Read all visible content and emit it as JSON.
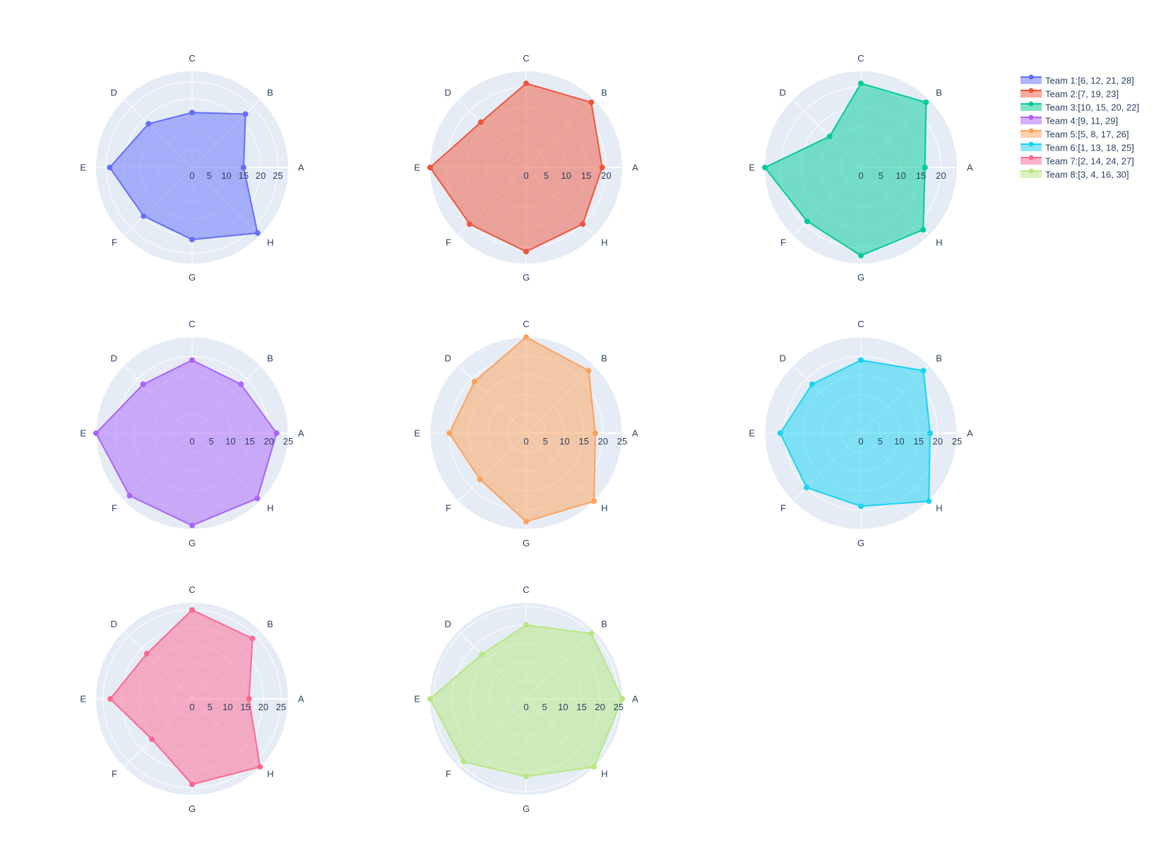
{
  "chart_data": {
    "type": "radar",
    "categories": [
      "A",
      "B",
      "C",
      "D",
      "E",
      "F",
      "G",
      "H"
    ],
    "colors": {
      "plot_background": "#e5ecf6",
      "grid": "#ffffff",
      "text": "#2a3f5f"
    },
    "panels": [
      {
        "name": "Team 1:[6, 12, 21, 28]",
        "color": "#636efa",
        "radial_range": [
          0,
          28
        ],
        "radial_ticks": [
          0,
          5,
          10,
          15,
          20,
          25
        ],
        "values": [
          15,
          22,
          16,
          18,
          24,
          20,
          21,
          27
        ]
      },
      {
        "name": "Team 2:[7, 19, 23]",
        "color": "#ef553b",
        "radial_range": [
          0,
          24
        ],
        "radial_ticks": [
          0,
          5,
          10,
          15,
          20
        ],
        "values": [
          19,
          23,
          21,
          16,
          24,
          20,
          21,
          20
        ]
      },
      {
        "name": "Team 3:[10, 15, 20, 22]",
        "color": "#00cc96",
        "radial_range": [
          0,
          24
        ],
        "radial_ticks": [
          0,
          5,
          10,
          15,
          20,
          25
        ],
        "values": [
          16,
          23,
          21,
          11,
          24,
          19,
          22,
          22
        ]
      },
      {
        "name": "Team 4:[9, 11, 29]",
        "color": "#ab63fa",
        "radial_range": [
          0,
          25
        ],
        "radial_ticks": [
          0,
          5,
          10,
          15,
          20,
          25
        ],
        "values": [
          22,
          18,
          19,
          18,
          25,
          23,
          24,
          24
        ]
      },
      {
        "name": "Team 5:[5, 8, 17, 26]",
        "color": "#ffa15a",
        "radial_range": [
          0,
          25
        ],
        "radial_ticks": [
          0,
          5,
          10,
          15,
          20,
          25
        ],
        "values": [
          18,
          23,
          25,
          19,
          20,
          17,
          23,
          25
        ]
      },
      {
        "name": "Team 6:[1, 13, 18, 25]",
        "color": "#19d3f3",
        "radial_range": [
          0,
          25
        ],
        "radial_ticks": [
          0,
          5,
          10,
          15,
          20,
          25
        ],
        "values": [
          18,
          23,
          19,
          18,
          21,
          20,
          19,
          25
        ]
      },
      {
        "name": "Team 7:[2, 14, 24, 27]",
        "color": "#ff6692",
        "radial_range": [
          0,
          27
        ],
        "radial_ticks": [
          0,
          5,
          10,
          15,
          20,
          25
        ],
        "values": [
          16,
          24,
          25,
          18,
          23,
          16,
          24,
          27
        ]
      },
      {
        "name": "Team 8:[3, 4, 16, 30]",
        "color": "#b6e880",
        "radial_range": [
          0,
          26
        ],
        "radial_ticks": [
          0,
          5,
          10,
          15,
          20,
          25
        ],
        "values": [
          26,
          25,
          20,
          17,
          26,
          24,
          21,
          26
        ]
      }
    ]
  }
}
